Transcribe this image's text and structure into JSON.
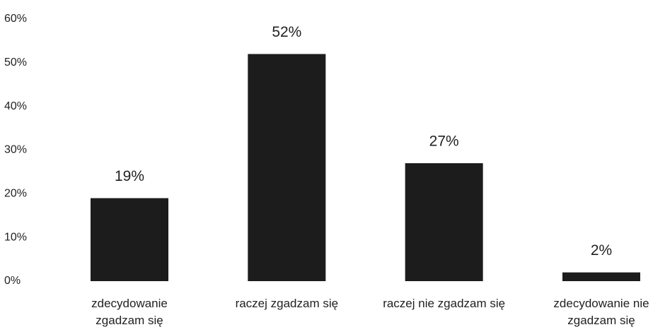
{
  "chart_data": {
    "type": "bar",
    "categories": [
      "zdecydowanie zgadzam się",
      "raczej zgadzam się",
      "raczej nie zgadzam się",
      "zdecydowanie nie zgadzam się"
    ],
    "values": [
      19,
      52,
      27,
      2
    ],
    "value_labels": [
      "19%",
      "52%",
      "27%",
      "2%"
    ],
    "color": "#1c1c1c",
    "ylim": [
      0,
      60
    ],
    "yticks": [
      {
        "value": 0,
        "label": "0%"
      },
      {
        "value": 10,
        "label": "10%"
      },
      {
        "value": 20,
        "label": "20%"
      },
      {
        "value": 30,
        "label": "30%"
      },
      {
        "value": 40,
        "label": "40%"
      },
      {
        "value": 50,
        "label": "50%"
      },
      {
        "value": 60,
        "label": "60%"
      }
    ],
    "grid": false
  }
}
